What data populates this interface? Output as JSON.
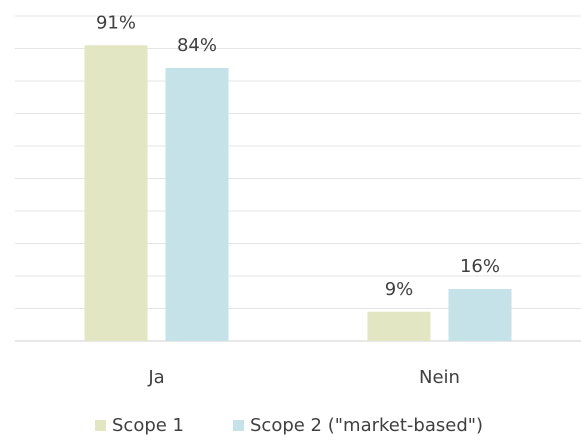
{
  "chart_data": {
    "type": "bar",
    "categories": [
      "Ja",
      "Nein"
    ],
    "series": [
      {
        "name": "Scope 1",
        "color": "#e2e6c3",
        "values": [
          91,
          9
        ],
        "value_labels": [
          "91%",
          "9%"
        ]
      },
      {
        "name": "Scope 2 (\"market-based\")",
        "color": "#c4e2e8",
        "values": [
          84,
          16
        ],
        "value_labels": [
          "84%",
          "16%"
        ]
      }
    ],
    "ylim": [
      0,
      100
    ],
    "yticks": [
      0,
      10,
      20,
      30,
      40,
      50,
      60,
      70,
      80,
      90,
      100
    ],
    "grid": true,
    "legend": "bottom"
  }
}
